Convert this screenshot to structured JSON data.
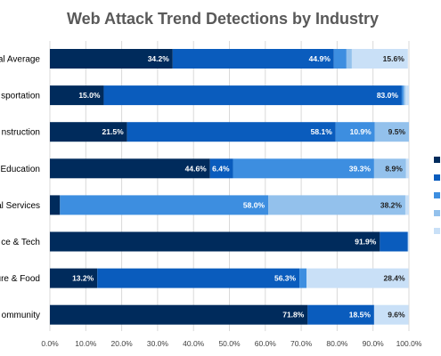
{
  "chart_data": {
    "type": "bar",
    "orientation": "horizontal",
    "stacked": true,
    "title": "Web Attack Trend Detections by Industry",
    "categories": [
      "al Average",
      "sportation",
      "nstruction",
      "Education",
      "al Services",
      "ce & Tech",
      "ure & Food",
      "ommunity"
    ],
    "xlim": [
      0,
      100
    ],
    "x_ticks": [
      "0.0%",
      "10.0%",
      "20.0%",
      "30.0%",
      "40.0%",
      "50.0%",
      "60.0%",
      "70.0%",
      "80.0%",
      "90.0%",
      "100.0%"
    ],
    "grid": "vertical",
    "legend": "right",
    "series": [
      {
        "color": "#002b5c",
        "values": [
          34.2,
          15.0,
          21.5,
          44.6,
          2.8,
          91.9,
          13.2,
          71.8
        ]
      },
      {
        "color": "#0a5cbd",
        "values": [
          44.9,
          83.0,
          58.1,
          6.4,
          0.0,
          7.8,
          56.3,
          18.5
        ]
      },
      {
        "color": "#3d8ee0",
        "values": [
          3.5,
          0.5,
          10.9,
          39.3,
          58.0,
          0.0,
          2.0,
          0.0
        ]
      },
      {
        "color": "#93c1ec",
        "values": [
          1.5,
          0.5,
          9.5,
          8.9,
          38.2,
          0.0,
          0.0,
          0.0
        ]
      },
      {
        "color": "#c9e0f7",
        "values": [
          15.6,
          1.0,
          0.0,
          0.8,
          1.0,
          0.3,
          28.4,
          9.6
        ]
      }
    ],
    "data_labels": [
      [
        "34.2%",
        "44.9%",
        "",
        "",
        "15.6%"
      ],
      [
        "15.0%",
        "83.0%",
        "",
        "",
        ""
      ],
      [
        "21.5%",
        "58.1%",
        "10.9%",
        "9.5%",
        ""
      ],
      [
        "44.6%",
        "6.4%",
        "39.3%",
        "8.9%",
        ""
      ],
      [
        "",
        "",
        "58.0%",
        "38.2%",
        ""
      ],
      [
        "91.9%",
        "",
        "",
        "",
        ""
      ],
      [
        "13.2%",
        "56.3%",
        "",
        "",
        "28.4%"
      ],
      [
        "71.8%",
        "18.5%",
        "",
        "",
        "9.6%"
      ]
    ]
  }
}
